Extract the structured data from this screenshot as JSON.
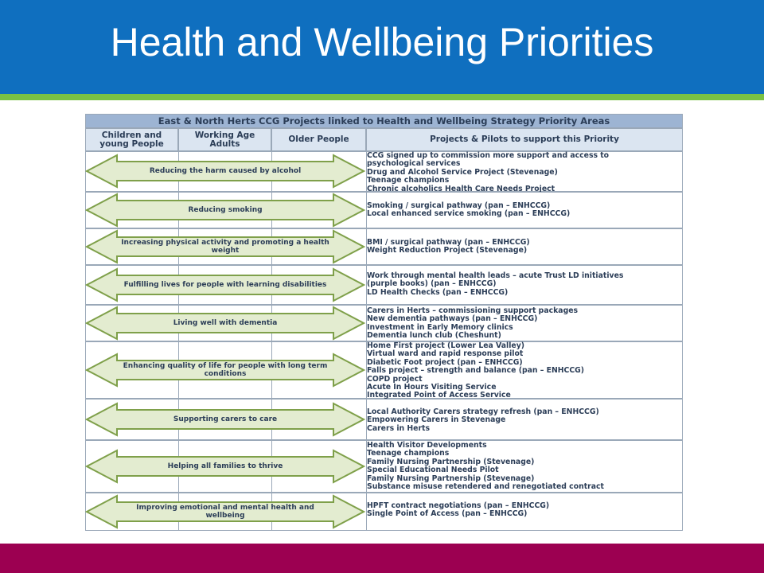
{
  "slide": {
    "title": "Health and Wellbeing Priorities",
    "colors": {
      "header_blue": "#0f6fbf",
      "green_rule": "#7ac143",
      "footer_maroon": "#9c0051",
      "arrow_fill": "#e3ecd0",
      "arrow_stroke": "#7fa04a"
    }
  },
  "table": {
    "title": "East & North Herts CCG Projects linked to Health and Wellbeing Strategy Priority Areas",
    "columns": {
      "children": "Children and young People",
      "working": "Working Age Adults",
      "older": "Older People",
      "projects": "Projects & Pilots to support this Priority"
    },
    "rows": [
      {
        "priority": "Reducing the harm caused by alcohol",
        "projects": [
          "CCG signed up to commission more support and access to",
          "psychological services",
          "Drug and Alcohol Service Project (Stevenage)",
          "Teenage champions",
          "Chronic alcoholics Health Care Needs Project"
        ]
      },
      {
        "priority": "Reducing smoking",
        "projects": [
          "Smoking / surgical pathway (pan – ENHCCG)",
          "Local enhanced service smoking (pan – ENHCCG)"
        ]
      },
      {
        "priority": "Increasing physical activity and promoting a health weight",
        "projects": [
          "BMI / surgical pathway (pan – ENHCCG)",
          "Weight Reduction Project (Stevenage)"
        ]
      },
      {
        "priority": "Fulfilling lives for people with learning disabilities",
        "projects": [
          "Work through mental health leads – acute Trust LD initiatives",
          "(purple books) (pan – ENHCCG)",
          "LD Health Checks (pan – ENHCCG)"
        ]
      },
      {
        "priority": "Living well with dementia",
        "projects": [
          "Carers in Herts – commissioning support packages",
          "New dementia pathways (pan – ENHCCG)",
          "Investment  in Early Memory clinics",
          "Dementia lunch club (Cheshunt)"
        ]
      },
      {
        "priority": "Enhancing quality of life for people with long term conditions",
        "projects": [
          "Home First project (Lower Lea Valley)",
          "Virtual ward and rapid response pilot",
          "Diabetic Foot project (pan – ENHCCG)",
          "Falls project – strength and balance (pan – ENHCCG)",
          "COPD project",
          "Acute In Hours Visiting Service",
          "Integrated Point of Access Service"
        ]
      },
      {
        "priority": "Supporting carers to care",
        "projects": [
          "Local Authority Carers strategy refresh (pan – ENHCCG)",
          "Empowering Carers in Stevenage",
          "Carers in Herts"
        ]
      },
      {
        "priority": "Helping all families to thrive",
        "projects": [
          "Health Visitor Developments",
          "Teenage champions",
          "Family Nursing Partnership (Stevenage)",
          "Special Educational  Needs Pilot",
          "Family Nursing Partnership (Stevenage)",
          "Substance misuse retendered and renegotiated contract"
        ]
      },
      {
        "priority": "Improving emotional and mental health and wellbeing",
        "projects": [
          "HPFT contract negotiations  (pan – ENHCCG)",
          "Single Point of Access (pan – ENHCCG)"
        ]
      }
    ]
  }
}
